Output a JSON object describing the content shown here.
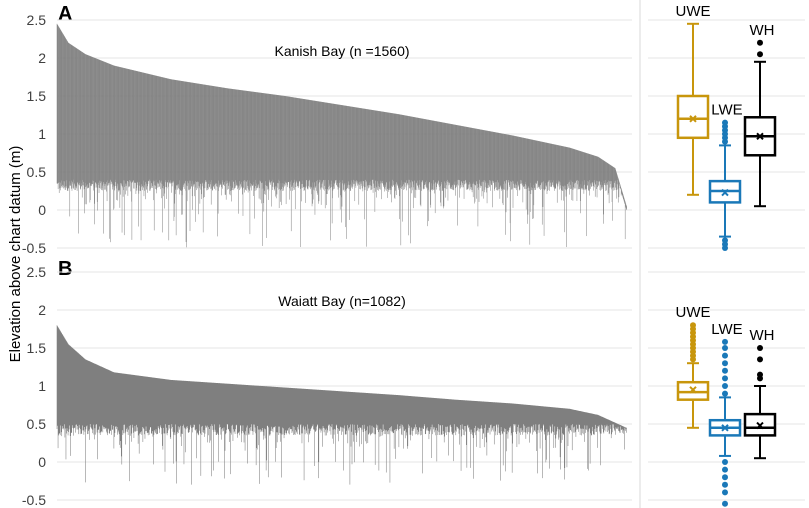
{
  "figure": {
    "ylabel": "Elevation above chart datum (m)"
  },
  "chart_data": [
    {
      "panel": "A",
      "type": "area",
      "title": "Kanish Bay (n =1560)",
      "n": 1560,
      "ylim": [
        -0.5,
        2.5
      ],
      "yticks": [
        "-0.5",
        "0",
        "0.5",
        "1",
        "1.5",
        "2",
        "2.5"
      ],
      "grid": true,
      "color": "#7f7f7f",
      "upper_edge": {
        "x_frac": [
          0,
          0.02,
          0.05,
          0.1,
          0.2,
          0.3,
          0.4,
          0.5,
          0.6,
          0.7,
          0.8,
          0.9,
          0.95,
          0.98,
          1
        ],
        "y": [
          2.45,
          2.2,
          2.05,
          1.9,
          1.72,
          1.6,
          1.5,
          1.38,
          1.26,
          1.12,
          0.98,
          0.82,
          0.7,
          0.55,
          0.05
        ]
      },
      "lower_edge_typical": [
        0.25,
        0.4
      ],
      "lower_edge_min": -0.5
    },
    {
      "panel": "A-box",
      "type": "box",
      "ylim": [
        -0.5,
        2.5
      ],
      "boxes": [
        {
          "name": "UWE",
          "color": "#c8960c",
          "whisker_low": 0.2,
          "q1": 0.95,
          "median": 1.2,
          "mean": 1.2,
          "q3": 1.5,
          "whisker_high": 2.45,
          "outliers": []
        },
        {
          "name": "LWE",
          "color": "#1a78b8",
          "whisker_low": -0.35,
          "q1": 0.1,
          "median": 0.25,
          "mean": 0.23,
          "q3": 0.38,
          "whisker_high": 0.85,
          "outliers": [
            0.9,
            0.95,
            1.0,
            1.05,
            1.1,
            1.15,
            -0.4,
            -0.45,
            -0.5
          ]
        },
        {
          "name": "WH",
          "color": "#000000",
          "whisker_low": 0.05,
          "q1": 0.72,
          "median": 0.97,
          "mean": 0.97,
          "q3": 1.22,
          "whisker_high": 1.95,
          "outliers": [
            2.05,
            2.2
          ]
        }
      ]
    },
    {
      "panel": "B",
      "type": "area",
      "title": "Waiatt Bay (n=1082)",
      "n": 1082,
      "ylim": [
        -0.5,
        2.5
      ],
      "yticks": [
        "-0.5",
        "0",
        "0.5",
        "1",
        "1.5",
        "2",
        "2.5"
      ],
      "grid": true,
      "color": "#7f7f7f",
      "upper_edge": {
        "x_frac": [
          0,
          0.02,
          0.05,
          0.1,
          0.2,
          0.3,
          0.4,
          0.5,
          0.6,
          0.7,
          0.8,
          0.9,
          0.95,
          1
        ],
        "y": [
          1.8,
          1.55,
          1.35,
          1.18,
          1.08,
          1.03,
          0.98,
          0.93,
          0.88,
          0.82,
          0.77,
          0.7,
          0.62,
          0.45
        ]
      },
      "lower_edge_typical": [
        0.35,
        0.5
      ],
      "lower_edge_min": -0.3
    },
    {
      "panel": "B-box",
      "type": "box",
      "ylim": [
        -0.5,
        2.5
      ],
      "boxes": [
        {
          "name": "UWE",
          "color": "#c8960c",
          "whisker_low": 0.45,
          "q1": 0.82,
          "median": 0.92,
          "mean": 0.95,
          "q3": 1.05,
          "whisker_high": 1.3,
          "outliers": [
            1.35,
            1.4,
            1.45,
            1.5,
            1.55,
            1.6,
            1.65,
            1.7,
            1.75,
            1.8
          ]
        },
        {
          "name": "LWE",
          "color": "#1a78b8",
          "whisker_low": 0.08,
          "q1": 0.35,
          "median": 0.45,
          "mean": 0.45,
          "q3": 0.55,
          "whisker_high": 0.85,
          "outliers": [
            0.9,
            1.0,
            1.1,
            1.2,
            1.3,
            1.4,
            1.5,
            1.58,
            0.0,
            -0.1,
            -0.2,
            -0.3,
            -0.4,
            -0.55
          ]
        },
        {
          "name": "WH",
          "color": "#000000",
          "whisker_low": 0.05,
          "q1": 0.35,
          "median": 0.45,
          "mean": 0.48,
          "q3": 0.63,
          "whisker_high": 1.0,
          "outliers": [
            1.1,
            1.15,
            1.35,
            1.5
          ]
        }
      ]
    }
  ]
}
